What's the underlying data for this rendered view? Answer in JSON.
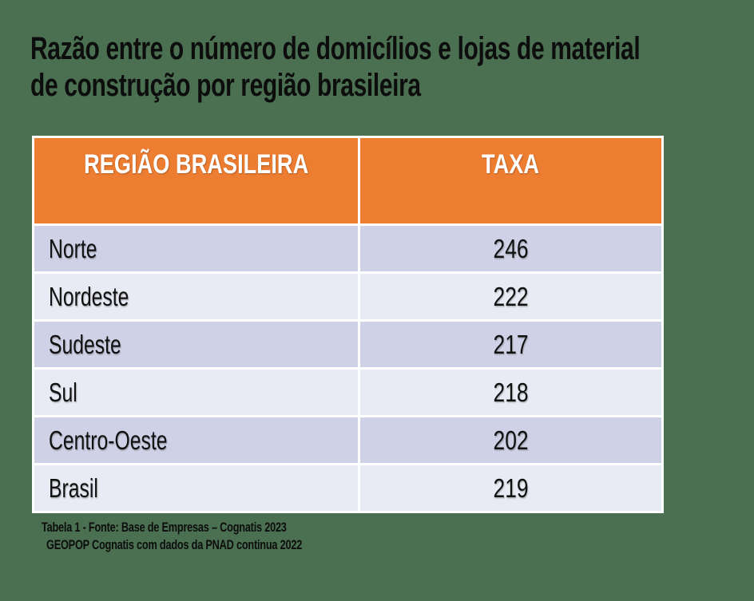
{
  "title": {
    "full": "Razão entre o número de domicílios e lojas de material de construção por região brasileira",
    "lines": [
      "Razão entre o número de domicílios e lojas de material",
      "de construção por região brasileira"
    ]
  },
  "table": {
    "headers": {
      "region": "REGIÃO BRASILEIRA",
      "taxa": "TAXA"
    },
    "rows": [
      {
        "region": "Norte",
        "taxa": "246"
      },
      {
        "region": "Nordeste",
        "taxa": "222"
      },
      {
        "region": "Sudeste",
        "taxa": "217"
      },
      {
        "region": "Sul",
        "taxa": "218"
      },
      {
        "region": "Centro-Oeste",
        "taxa": "202"
      },
      {
        "region": "Brasil",
        "taxa": "219"
      }
    ]
  },
  "footnote": {
    "line1": "Tabela 1 - Fonte: Base de Empresas – Cognatis 2023",
    "line2": "GEOPOP Cognatis com dados da PNAD continua 2022"
  },
  "colors": {
    "background_green": "#4A7051",
    "header_orange": "#ED7D31",
    "row_band_dark": "#CFD1E6",
    "row_band_light": "#E9EBF4",
    "border_white": "#FFFFFF",
    "text_black": "#0D0D0D",
    "header_text_white": "#FFFFFF"
  },
  "chart_data": {
    "type": "table",
    "title": "Razão entre o número de domicílios e lojas de material de construção por região brasileira",
    "columns": [
      "REGIÃO BRASILEIRA",
      "TAXA"
    ],
    "rows": [
      [
        "Norte",
        246
      ],
      [
        "Nordeste",
        222
      ],
      [
        "Sudeste",
        217
      ],
      [
        "Sul",
        218
      ],
      [
        "Centro-Oeste",
        202
      ],
      [
        "Brasil",
        219
      ]
    ],
    "source": "Tabela 1 - Fonte: Base de Empresas – Cognatis 2023; GEOPOP Cognatis com dados da PNAD continua 2022",
    "layout": {
      "banded_rows": true,
      "header_fill": "#ED7D31",
      "value_alignment": "center",
      "region_alignment": "left"
    }
  }
}
